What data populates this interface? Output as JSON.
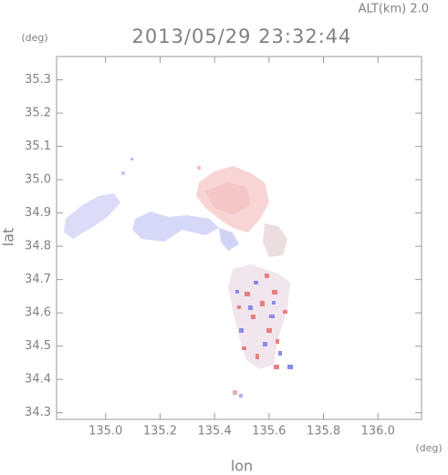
{
  "chart_data": {
    "type": "map",
    "title": "2013/05/29 23:32:44",
    "subtitle": "ALT(km) 2.0",
    "x_label": "lon",
    "y_label": "lat",
    "x_unit": "(deg)",
    "y_unit": "(deg)",
    "xlim": [
      134.82,
      136.16
    ],
    "ylim": [
      34.28,
      35.37
    ],
    "xticks": [
      {
        "value": 135,
        "label": "135.0"
      },
      135.2,
      135.4,
      135.6,
      135.8,
      {
        "value": 136,
        "label": "136.0"
      }
    ],
    "yticks": [
      34.3,
      34.4,
      34.5,
      34.6,
      34.7,
      34.8,
      34.9,
      {
        "value": 35,
        "label": "35.0"
      },
      35.1,
      35.2,
      35.3
    ]
  }
}
